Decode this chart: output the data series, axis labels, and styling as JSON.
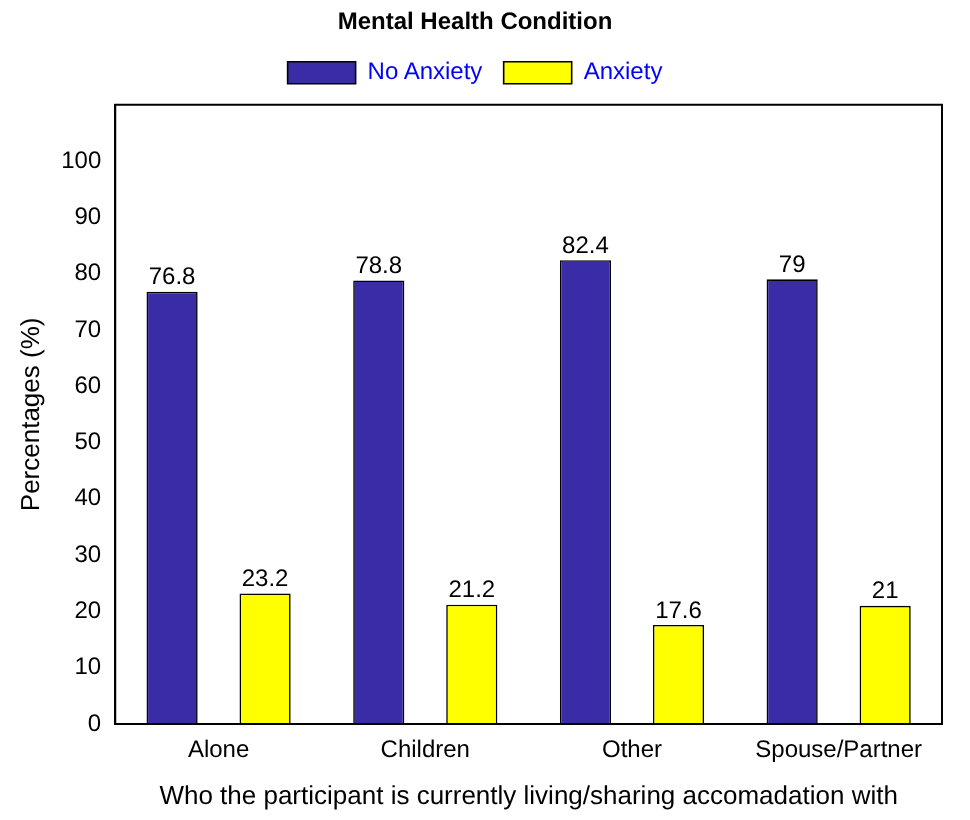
{
  "chart_data": {
    "type": "bar",
    "title": "Mental Health Condition",
    "xlabel": "Who the participant is currently living/sharing accomadation with",
    "ylabel": "Percentages (%)",
    "categories": [
      "Alone",
      "Children",
      "Other",
      "Spouse/Partner"
    ],
    "series": [
      {
        "name": "No Anxiety",
        "color": "#3a2ca6",
        "values": [
          76.8,
          78.8,
          82.4,
          79
        ]
      },
      {
        "name": "Anxiety",
        "color": "#ffff00",
        "values": [
          23.2,
          21.2,
          17.6,
          21
        ]
      }
    ],
    "ylim": [
      0,
      110
    ],
    "yticks": [
      0,
      10,
      20,
      30,
      40,
      50,
      60,
      70,
      80,
      90,
      100
    ],
    "grid": false,
    "legend": "top",
    "data_labels": true
  }
}
